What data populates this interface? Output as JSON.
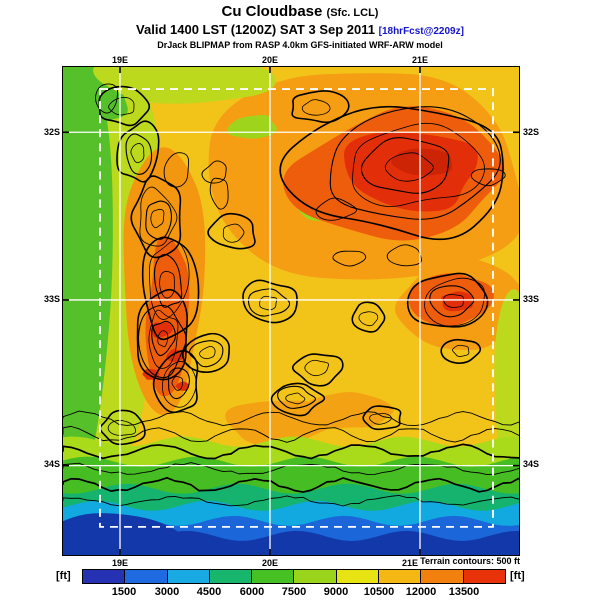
{
  "header": {
    "title": "Cu Cloudbase",
    "title_qualifier": "(Sfc. LCL)",
    "valid_line": "Valid 1400 LST (1200Z) SAT 3 Sep 2011",
    "forecast_tag": "[18hrFcst@2209z]",
    "model_line": "DrJack BLIPMAP from RASP 4.0km GFS-initiated WRF-ARW model"
  },
  "map": {
    "lat_left": [
      "32S",
      "33S",
      "34S"
    ],
    "lat_right": [
      "32S",
      "33S",
      "34S"
    ],
    "lon_top": [
      "19E",
      "20E",
      "21E"
    ],
    "lon_bottom": [
      "19E",
      "20E",
      "21E"
    ]
  },
  "legend": {
    "unit": "[ft]",
    "labels": [
      "1500",
      "3000",
      "4500",
      "6000",
      "7500",
      "9000",
      "10500",
      "12000",
      "13500"
    ],
    "colors": [
      "#2632b4",
      "#1f6ae0",
      "#19aae4",
      "#18b66c",
      "#46c022",
      "#9ad51c",
      "#e8e414",
      "#f4b714",
      "#f2800e",
      "#e8330a"
    ],
    "note": "Terrain contours: 500 ft"
  }
}
